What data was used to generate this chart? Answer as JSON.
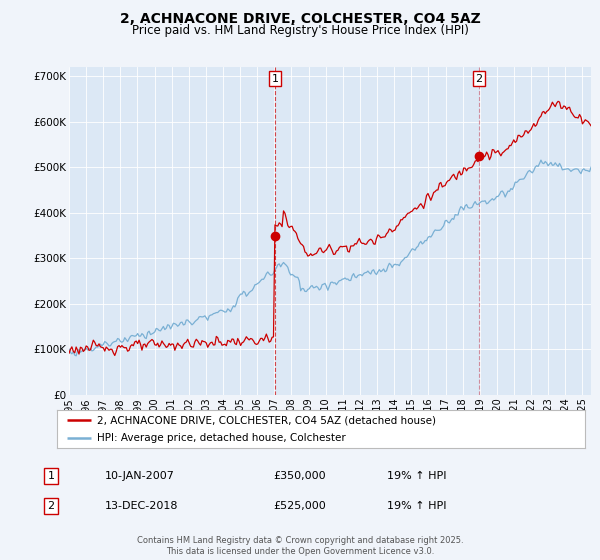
{
  "title": "2, ACHNACONE DRIVE, COLCHESTER, CO4 5AZ",
  "subtitle": "Price paid vs. HM Land Registry's House Price Index (HPI)",
  "title_fontsize": 10,
  "subtitle_fontsize": 8.5,
  "background_color": "#f0f4fa",
  "plot_bg_color": "#dce8f5",
  "legend_label_red": "2, ACHNACONE DRIVE, COLCHESTER, CO4 5AZ (detached house)",
  "legend_label_blue": "HPI: Average price, detached house, Colchester",
  "footer": "Contains HM Land Registry data © Crown copyright and database right 2025.\nThis data is licensed under the Open Government Licence v3.0.",
  "annotation1_label": "1",
  "annotation1_date": "10-JAN-2007",
  "annotation1_price": "£350,000",
  "annotation1_hpi": "19% ↑ HPI",
  "annotation2_label": "2",
  "annotation2_date": "13-DEC-2018",
  "annotation2_price": "£525,000",
  "annotation2_hpi": "19% ↑ HPI",
  "red_line_color": "#cc0000",
  "blue_line_color": "#7ab0d4",
  "marker1_x": 2007.04,
  "marker1_y": 350000,
  "marker2_x": 2018.96,
  "marker2_y": 525000,
  "vline1_x": 2007.04,
  "vline2_x": 2018.96,
  "ylim": [
    0,
    720000
  ],
  "xlim": [
    1995.0,
    2025.5
  ],
  "yticks": [
    0,
    100000,
    200000,
    300000,
    400000,
    500000,
    600000,
    700000
  ],
  "ytick_labels": [
    "£0",
    "£100K",
    "£200K",
    "£300K",
    "£400K",
    "£500K",
    "£600K",
    "£700K"
  ],
  "xticks": [
    1995,
    1996,
    1997,
    1998,
    1999,
    2000,
    2001,
    2002,
    2003,
    2004,
    2005,
    2006,
    2007,
    2008,
    2009,
    2010,
    2011,
    2012,
    2013,
    2014,
    2015,
    2016,
    2017,
    2018,
    2019,
    2020,
    2021,
    2022,
    2023,
    2024,
    2025
  ]
}
